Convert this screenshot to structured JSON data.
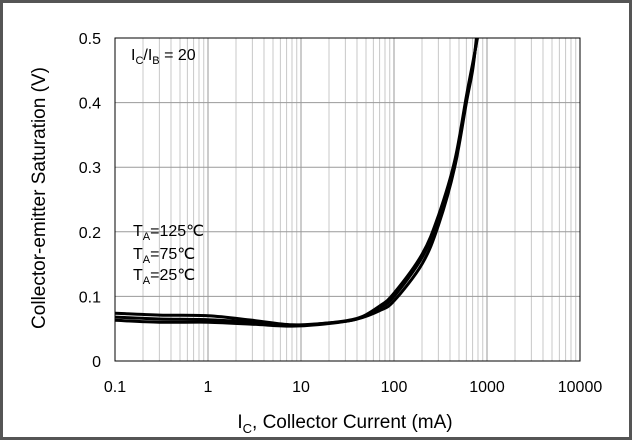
{
  "chart_data": {
    "type": "line",
    "x_scale": "log",
    "xlim": [
      0.1,
      10000
    ],
    "ylim": [
      0,
      0.5
    ],
    "grid": true,
    "xlabel": {
      "main": "I",
      "sub": "C",
      "rest": ", Collector Current (mA)"
    },
    "ylabel": "Collector-emitter  Saturation (V)",
    "x_ticks": [
      "0.1",
      "1",
      "10",
      "100",
      "1000",
      "10000"
    ],
    "y_ticks": [
      "0",
      "0.1",
      "0.2",
      "0.3",
      "0.4",
      "0.5"
    ],
    "condition": {
      "a": "I",
      "a_sub": "C",
      "mid": "/I",
      "b_sub": "B",
      "rest": " = 20"
    },
    "legend_lines": [
      {
        "main": "T",
        "sub": "A",
        "rest": "=125℃"
      },
      {
        "main": "T",
        "sub": "A",
        "rest": "=75℃"
      },
      {
        "main": "T",
        "sub": "A",
        "rest": "=25℃"
      }
    ],
    "series": [
      {
        "x": [
          0.1,
          0.3,
          1,
          3,
          8,
          20,
          40,
          70,
          100,
          200,
          300,
          450,
          600,
          700,
          790
        ],
        "y": [
          0.074,
          0.071,
          0.07,
          0.063,
          0.056,
          0.059,
          0.065,
          0.085,
          0.105,
          0.165,
          0.225,
          0.31,
          0.41,
          0.46,
          0.5
        ]
      },
      {
        "x": [
          0.1,
          0.3,
          1,
          3,
          8,
          20,
          40,
          70,
          100,
          200,
          300,
          450,
          600,
          700,
          780
        ],
        "y": [
          0.068,
          0.065,
          0.064,
          0.06,
          0.055,
          0.059,
          0.066,
          0.082,
          0.1,
          0.16,
          0.22,
          0.305,
          0.405,
          0.455,
          0.5
        ]
      },
      {
        "x": [
          0.1,
          0.3,
          1,
          3,
          8,
          20,
          40,
          70,
          100,
          200,
          300,
          450,
          600,
          700,
          770
        ],
        "y": [
          0.063,
          0.06,
          0.06,
          0.057,
          0.054,
          0.058,
          0.065,
          0.078,
          0.093,
          0.15,
          0.21,
          0.3,
          0.4,
          0.45,
          0.5
        ]
      }
    ]
  }
}
